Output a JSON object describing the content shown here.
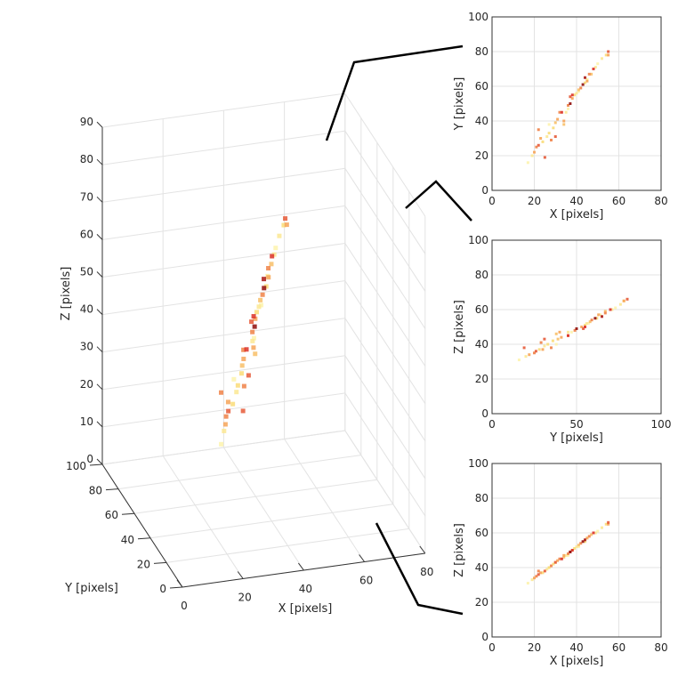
{
  "chart_data": [
    {
      "type": "scatter",
      "projection": "3d",
      "xlabel": "X [pixels]",
      "ylabel": "Y [pixels]",
      "zlabel": "Z [pixels]",
      "xlim": [
        0,
        80
      ],
      "ylim": [
        0,
        100
      ],
      "zlim": [
        0,
        90
      ],
      "xticks": [
        0,
        20,
        40,
        60,
        80
      ],
      "yticks": [
        0,
        20,
        40,
        60,
        80,
        100
      ],
      "zticks": [
        0,
        10,
        20,
        30,
        40,
        50,
        60,
        70,
        80,
        90
      ],
      "grid": true,
      "colormap": "hot (reversed): light yellow to dark red",
      "points_ref": "points"
    },
    {
      "type": "scatter",
      "view": "XY",
      "xlabel": "X [pixels]",
      "ylabel": "Y [pixels]",
      "xlim": [
        0,
        80
      ],
      "ylim": [
        0,
        100
      ],
      "xticks": [
        0,
        20,
        40,
        60,
        80
      ],
      "yticks": [
        0,
        20,
        40,
        60,
        80,
        100
      ],
      "grid": true
    },
    {
      "type": "scatter",
      "view": "YZ",
      "xlabel": "Y [pixels]",
      "ylabel": "Z [pixels]",
      "xlim": [
        0,
        100
      ],
      "ylim": [
        0,
        100
      ],
      "xticks": [
        0,
        50,
        100
      ],
      "yticks": [
        0,
        20,
        40,
        60,
        80,
        100
      ],
      "grid": true
    },
    {
      "type": "scatter",
      "view": "XZ",
      "xlabel": "X [pixels]",
      "ylabel": "Z [pixels]",
      "xlim": [
        0,
        80
      ],
      "ylim": [
        0,
        100
      ],
      "xticks": [
        0,
        20,
        40,
        60,
        80
      ],
      "yticks": [
        0,
        20,
        40,
        60,
        80,
        100
      ],
      "grid": true
    }
  ],
  "points": [
    [
      17,
      16,
      31,
      0.1
    ],
    [
      19,
      20,
      33,
      0.2
    ],
    [
      20,
      22,
      34,
      0.5
    ],
    [
      21,
      25,
      35,
      0.6
    ],
    [
      22,
      26,
      36,
      0.7
    ],
    [
      22,
      35,
      38,
      0.6
    ],
    [
      23,
      30,
      37,
      0.5
    ],
    [
      24,
      28,
      37,
      0.3
    ],
    [
      25,
      19,
      38,
      0.7
    ],
    [
      26,
      31,
      39,
      0.2
    ],
    [
      27,
      33,
      40,
      0.3
    ],
    [
      28,
      29,
      41,
      0.6
    ],
    [
      29,
      36,
      42,
      0.3
    ],
    [
      30,
      31,
      43,
      0.7
    ],
    [
      30,
      39,
      43,
      0.4
    ],
    [
      31,
      41,
      44,
      0.5
    ],
    [
      32,
      45,
      45,
      0.6
    ],
    [
      33,
      45,
      45,
      0.8
    ],
    [
      34,
      40,
      47,
      0.5
    ],
    [
      34,
      38,
      46,
      0.4
    ],
    [
      35,
      45,
      47,
      0.2
    ],
    [
      36,
      49,
      48,
      0.6
    ],
    [
      37,
      50,
      49,
      0.95
    ],
    [
      37,
      54,
      49,
      0.7
    ],
    [
      38,
      53,
      50,
      0.5
    ],
    [
      38,
      55,
      50,
      0.8
    ],
    [
      39,
      55,
      51,
      0.3
    ],
    [
      40,
      56,
      52,
      0.2
    ],
    [
      41,
      58,
      53,
      0.4
    ],
    [
      42,
      59,
      54,
      0.6
    ],
    [
      43,
      61,
      55,
      0.95
    ],
    [
      44,
      65,
      56,
      0.9
    ],
    [
      44,
      62,
      55,
      0.3
    ],
    [
      45,
      63,
      57,
      0.5
    ],
    [
      46,
      67,
      58,
      0.6
    ],
    [
      47,
      67,
      59,
      0.4
    ],
    [
      48,
      70,
      60,
      0.8
    ],
    [
      49,
      71,
      60,
      0.2
    ],
    [
      50,
      73,
      61,
      0.1
    ],
    [
      52,
      76,
      63,
      0.2
    ],
    [
      54,
      78,
      65,
      0.3
    ],
    [
      55,
      80,
      66,
      0.7
    ],
    [
      55,
      78,
      65,
      0.5
    ],
    [
      36,
      47,
      47,
      0.1
    ],
    [
      41,
      57,
      52,
      0.1
    ],
    [
      27,
      38,
      40,
      0.1
    ],
    [
      45,
      64,
      57,
      0.15
    ]
  ]
}
